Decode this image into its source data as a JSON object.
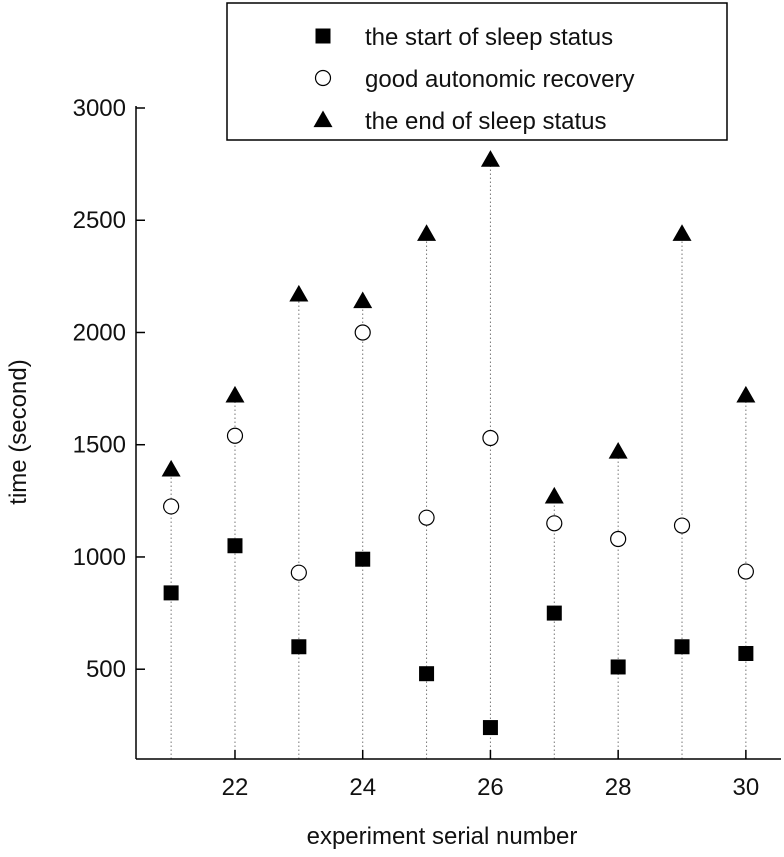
{
  "chart_data": {
    "type": "scatter",
    "title": "",
    "xlabel": "experiment serial number",
    "ylabel": "time (second)",
    "xlim": [
      20.45,
      30.55
    ],
    "ylim": [
      100,
      3000
    ],
    "xticks": [
      22,
      24,
      26,
      28,
      30
    ],
    "yticks": [
      500,
      1000,
      1500,
      2000,
      2500,
      3000
    ],
    "x": [
      21,
      22,
      23,
      24,
      25,
      26,
      27,
      28,
      29,
      30
    ],
    "series": [
      {
        "name": "the start of sleep status",
        "marker": "filled-square",
        "color": "#000000",
        "values": [
          840,
          1050,
          600,
          990,
          480,
          240,
          750,
          510,
          600,
          570
        ]
      },
      {
        "name": "good autonomic recovery",
        "marker": "open-circle",
        "color": "#000000",
        "values": [
          1225,
          1540,
          930,
          2000,
          1175,
          1530,
          1150,
          1080,
          1140,
          935
        ]
      },
      {
        "name": "the end of sleep status",
        "marker": "filled-triangle",
        "color": "#000000",
        "values": [
          1390,
          1720,
          2170,
          2140,
          2440,
          2770,
          1270,
          1470,
          2440,
          1720
        ]
      }
    ],
    "drop_lines": "dotted vertical from start to end per experiment",
    "grid": false,
    "legend_position": "top-right"
  }
}
